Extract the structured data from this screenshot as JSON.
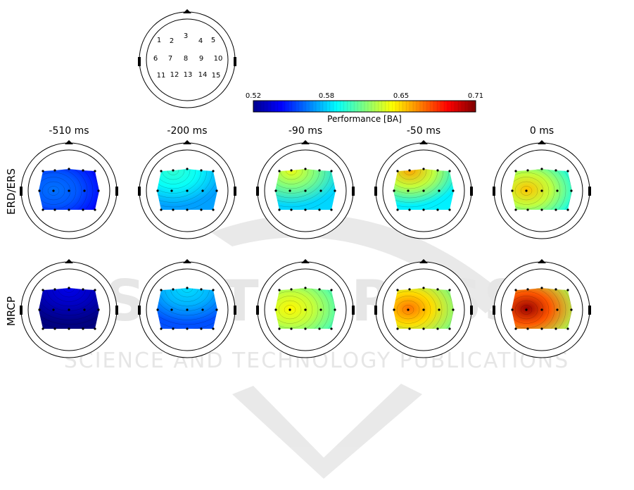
{
  "montage": {
    "channels": [
      "1",
      "2",
      "3",
      "4",
      "5",
      "6",
      "7",
      "8",
      "9",
      "10",
      "11",
      "12",
      "13",
      "14",
      "15"
    ]
  },
  "colorbar": {
    "ticks": [
      "0.52",
      "0.58",
      "0.65",
      "0.71"
    ],
    "label": "Performance [BA]"
  },
  "time_labels": [
    "-510 ms",
    "-200 ms",
    "-90 ms",
    "-50 ms",
    "0 ms"
  ],
  "row_labels": [
    "ERD/ERS",
    "MRCP"
  ],
  "watermark": {
    "line1": "SCITEPRESS",
    "line2": "SCIENCE AND TECHNOLOGY PUBLICATIONS"
  },
  "colors": {
    "low": "#0000aa",
    "mid": "#7fff7f",
    "high": "#800000"
  },
  "maps": {
    "erd": [
      {
        "time": "-510 ms",
        "base": 0.555,
        "peak_channel": "7",
        "peak": 0.565
      },
      {
        "time": "-200 ms",
        "base": 0.585,
        "peak_channel": "2",
        "peak": 0.6
      },
      {
        "time": "-90 ms",
        "base": 0.595,
        "peak_channel": "2",
        "peak": 0.635
      },
      {
        "time": "-50 ms",
        "base": 0.6,
        "peak_channel": "2",
        "peak": 0.655
      },
      {
        "time": "0 ms",
        "base": 0.605,
        "peak_channel": "7",
        "peak": 0.65
      }
    ],
    "mrcp": [
      {
        "time": "-510 ms",
        "base": 0.525,
        "peak_channel": "3",
        "peak": 0.54
      },
      {
        "time": "-200 ms",
        "base": 0.57,
        "peak_channel": "3",
        "peak": 0.585
      },
      {
        "time": "-90 ms",
        "base": 0.615,
        "peak_channel": "7",
        "peak": 0.64
      },
      {
        "time": "-50 ms",
        "base": 0.625,
        "peak_channel": "7",
        "peak": 0.665
      },
      {
        "time": "0 ms",
        "base": 0.635,
        "peak_channel": "7",
        "peak": 0.705
      }
    ]
  }
}
